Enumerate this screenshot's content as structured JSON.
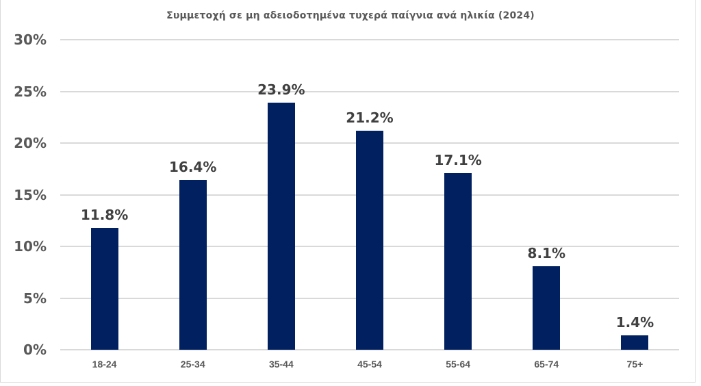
{
  "chart_data": {
    "type": "bar",
    "title": "Συμμετοχή σε μη αδειοδοτημένα τυχερά παίγνια ανά ηλικία (2024)",
    "xlabel": "",
    "ylabel": "",
    "categories": [
      "18-24",
      "25-34",
      "35-44",
      "45-54",
      "55-64",
      "65-74",
      "75+"
    ],
    "values": [
      11.8,
      16.4,
      23.9,
      21.2,
      17.1,
      8.1,
      1.4
    ],
    "value_labels": [
      "11.8%",
      "16.4%",
      "23.9%",
      "21.2%",
      "17.1%",
      "8.1%",
      "1.4%"
    ],
    "ylim": [
      0,
      30
    ],
    "yticks": [
      0,
      5,
      10,
      15,
      20,
      25,
      30
    ],
    "ytick_labels": [
      "0%",
      "5%",
      "10%",
      "15%",
      "20%",
      "25%",
      "30%"
    ],
    "grid": true,
    "legend": null,
    "bar_color": "#002060"
  }
}
